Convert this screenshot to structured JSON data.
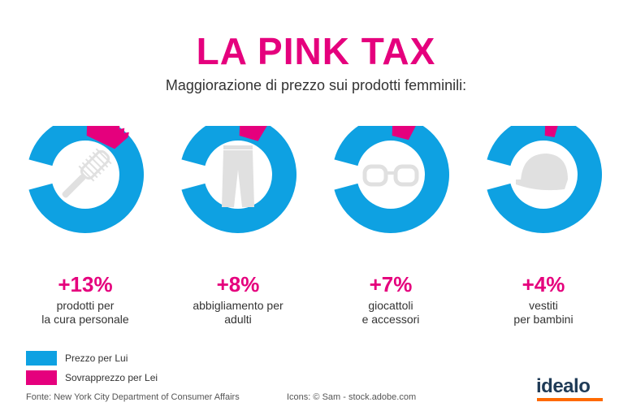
{
  "header": {
    "title": "LA PINK TAX",
    "subtitle": "Maggiorazione di prezzo sui prodotti femminili:"
  },
  "colors": {
    "lui": "#0ea1e2",
    "lei": "#e5007d",
    "icon": "#e0e0e0",
    "value_text": "#e5007d"
  },
  "chart_data": {
    "type": "pie",
    "title": "LA PINK TAX",
    "subtitle": "Maggiorazione di prezzo sui prodotti femminili:",
    "categories": [
      "prodotti per la cura personale",
      "abbigliamento per adulti",
      "giocattoli e accessori",
      "vestiti per bambini"
    ],
    "series": [
      {
        "name": "Prezzo per Lui",
        "values": [
          100,
          100,
          100,
          100
        ]
      },
      {
        "name": "Sovrapprezzo per Lei",
        "values": [
          13,
          8,
          7,
          4
        ]
      }
    ],
    "items": [
      {
        "value": 13,
        "value_label": "+13%",
        "label_lines": [
          "prodotti per",
          "la cura personale"
        ],
        "icon": "hairbrush-icon"
      },
      {
        "value": 8,
        "value_label": "+8%",
        "label_lines": [
          "abbigliamento per",
          "adulti"
        ],
        "icon": "trousers-icon"
      },
      {
        "value": 7,
        "value_label": "+7%",
        "label_lines": [
          "giocattoli",
          "e accessori"
        ],
        "icon": "glasses-icon"
      },
      {
        "value": 4,
        "value_label": "+4%",
        "label_lines": [
          "vestiti",
          "per bambini"
        ],
        "icon": "cap-icon"
      }
    ],
    "legend": "bottom-left"
  },
  "legend": {
    "items": [
      {
        "label": "Prezzo per Lui"
      },
      {
        "label": "Sovrapprezzo per Lei"
      }
    ]
  },
  "footer": {
    "source": "Fonte: New York City Department of Consumer Affairs",
    "icons_credit": "Icons: © Sam - stock.adobe.com",
    "logo": "idealo"
  }
}
